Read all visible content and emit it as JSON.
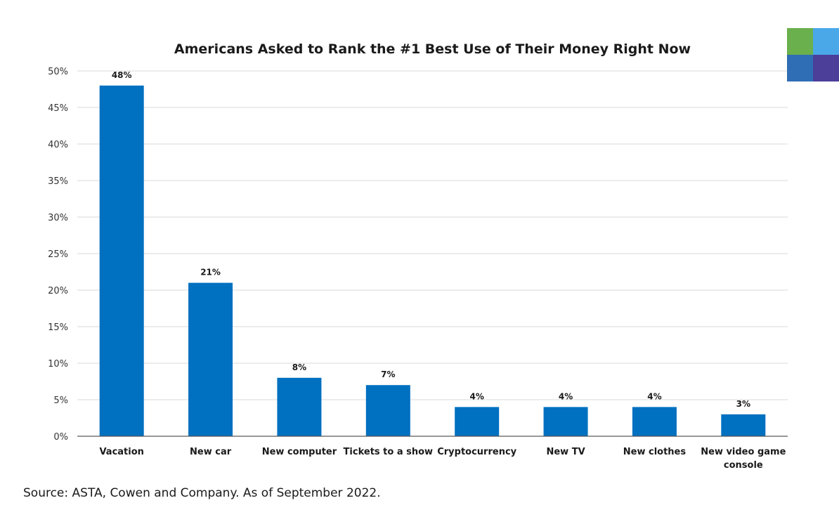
{
  "chart_data": {
    "type": "bar",
    "title": "Americans Asked to Rank the #1 Best Use of Their Money Right Now",
    "xlabel": "",
    "ylabel": "",
    "ylim": [
      0,
      50
    ],
    "yticks": [
      0,
      5,
      10,
      15,
      20,
      25,
      30,
      35,
      40,
      45,
      50
    ],
    "ytick_suffix": "%",
    "grid": true,
    "legend": "none",
    "categories": [
      [
        "Vacation"
      ],
      [
        "New car"
      ],
      [
        "New computer"
      ],
      [
        "Tickets to a show"
      ],
      [
        "Cryptocurrency"
      ],
      [
        "New TV"
      ],
      [
        "New clothes"
      ],
      [
        "New video game",
        "console"
      ]
    ],
    "values": [
      48,
      21,
      8,
      7,
      4,
      4,
      4,
      3
    ],
    "data_labels": [
      "48%",
      "21%",
      "8%",
      "7%",
      "4%",
      "4%",
      "4%",
      "3%"
    ],
    "bar_color": "#0070c0",
    "grid_color": "#d9d9d9",
    "axis_color": "#595959"
  },
  "source_text": "Source: ASTA, Cowen and Company. As of September 2022.",
  "logo": {
    "colors": [
      "#6ab04c",
      "#4aa8e8",
      "#2f6db5",
      "#4b3f9a"
    ]
  }
}
